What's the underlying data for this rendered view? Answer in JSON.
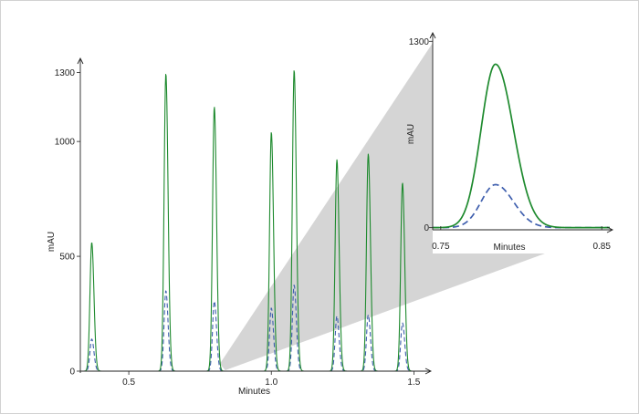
{
  "colors": {
    "series_solid": "#1e8a2e",
    "series_dashed": "#3f5fae",
    "zoom_shading": "#d5d5d5",
    "axis": "#222222"
  },
  "chart_data": [
    {
      "id": "main",
      "type": "line",
      "xlabel": "Minutes",
      "ylabel": "mAU",
      "xlim": [
        0.33,
        1.55
      ],
      "ylim": [
        0,
        1350
      ],
      "xticks": [
        0.5,
        1.0,
        1.5
      ],
      "xtick_labels": [
        "0.5",
        "1.0",
        "1.5"
      ],
      "yticks": [
        0,
        500,
        1000,
        1300
      ],
      "ytick_labels": [
        "0",
        "500",
        "1000",
        "1300"
      ],
      "grid": false,
      "legend": "none",
      "series": [
        {
          "style": "solid",
          "peaks": [
            {
              "x": 0.37,
              "y": 560
            },
            {
              "x": 0.63,
              "y": 1295
            },
            {
              "x": 0.8,
              "y": 1150
            },
            {
              "x": 1.0,
              "y": 1040
            },
            {
              "x": 1.08,
              "y": 1310
            },
            {
              "x": 1.23,
              "y": 920
            },
            {
              "x": 1.34,
              "y": 945
            },
            {
              "x": 1.46,
              "y": 820
            }
          ]
        },
        {
          "style": "dashed",
          "peaks": [
            {
              "x": 0.37,
              "y": 140
            },
            {
              "x": 0.63,
              "y": 350
            },
            {
              "x": 0.8,
              "y": 305
            },
            {
              "x": 1.0,
              "y": 275
            },
            {
              "x": 1.08,
              "y": 375
            },
            {
              "x": 1.23,
              "y": 240
            },
            {
              "x": 1.34,
              "y": 245
            },
            {
              "x": 1.46,
              "y": 210
            }
          ]
        }
      ]
    },
    {
      "id": "inset",
      "type": "line",
      "xlabel": "Minutes",
      "ylabel": "mAU",
      "xlim": [
        0.745,
        0.855
      ],
      "ylim": [
        -15,
        1340
      ],
      "xticks": [
        0.75,
        0.85
      ],
      "xtick_labels": [
        "0.75",
        "0.85"
      ],
      "yticks": [
        0,
        1300
      ],
      "ytick_labels": [
        "0",
        "1300"
      ],
      "grid": false,
      "legend": "none",
      "series": [
        {
          "style": "solid",
          "peaks": [
            {
              "x": 0.784,
              "y": 1140
            }
          ]
        },
        {
          "style": "dashed",
          "peaks": [
            {
              "x": 0.784,
              "y": 300
            }
          ]
        }
      ]
    }
  ]
}
